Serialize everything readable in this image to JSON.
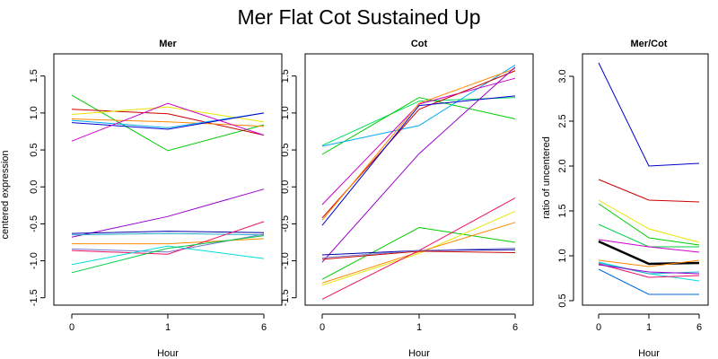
{
  "title": "Mer Flat Cot Sustained Up",
  "chart_data": [
    {
      "type": "line",
      "title": "Mer",
      "xlabel": "Hour",
      "ylabel": "centered expression",
      "categories": [
        "0",
        "1",
        "6"
      ],
      "yticks": [
        "-1.5",
        "-1.0",
        "-0.5",
        "0.0",
        "0.5",
        "1.0",
        "1.5"
      ],
      "ylim": [
        -1.6,
        1.8
      ],
      "series": [
        {
          "color": "#00cc00",
          "values": [
            1.24,
            0.49,
            0.84
          ]
        },
        {
          "color": "#cc0000",
          "values": [
            1.05,
            0.99,
            0.7
          ]
        },
        {
          "color": "#e6e600",
          "values": [
            0.98,
            1.08,
            0.88
          ]
        },
        {
          "color": "#ff8800",
          "values": [
            0.92,
            0.88,
            0.82
          ]
        },
        {
          "color": "#00aaee",
          "values": [
            0.9,
            0.8,
            1.0
          ]
        },
        {
          "color": "#0000cc",
          "values": [
            0.87,
            0.78,
            1.0
          ]
        },
        {
          "color": "#cc00cc",
          "values": [
            0.62,
            1.13,
            0.7
          ]
        },
        {
          "color": "#9900cc",
          "values": [
            -0.68,
            -0.4,
            -0.03
          ]
        },
        {
          "color": "#0000aa",
          "values": [
            -0.63,
            -0.6,
            -0.62
          ]
        },
        {
          "color": "#22aacc",
          "values": [
            -0.65,
            -0.63,
            -0.65
          ]
        },
        {
          "color": "#ff8800",
          "values": [
            -0.77,
            -0.77,
            -0.7
          ]
        },
        {
          "color": "#7777cc",
          "values": [
            -0.84,
            -0.88,
            -0.64
          ]
        },
        {
          "color": "#ee1166",
          "values": [
            -0.86,
            -0.91,
            -0.47
          ]
        },
        {
          "color": "#00dddd",
          "values": [
            -1.05,
            -0.8,
            -0.97
          ]
        },
        {
          "color": "#00cc44",
          "values": [
            -1.16,
            -0.83,
            -0.66
          ]
        }
      ]
    },
    {
      "type": "line",
      "title": "Cot",
      "xlabel": "Hour",
      "categories": [
        "0",
        "1",
        "6"
      ],
      "yticks": [
        "-1.5",
        "-1.0",
        "-0.5",
        "0.0",
        "0.5",
        "1.0",
        "1.5"
      ],
      "ylim": [
        -1.6,
        1.8
      ],
      "series": [
        {
          "color": "#00dd66",
          "values": [
            0.56,
            1.16,
            1.21
          ]
        },
        {
          "color": "#00cc00",
          "values": [
            0.44,
            1.21,
            0.92
          ]
        },
        {
          "color": "#00aaee",
          "values": [
            0.55,
            0.83,
            1.65
          ]
        },
        {
          "color": "#cc00cc",
          "values": [
            -0.24,
            1.12,
            1.47
          ]
        },
        {
          "color": "#cc0000",
          "values": [
            -0.42,
            1.05,
            1.57
          ]
        },
        {
          "color": "#ff8800",
          "values": [
            -0.45,
            1.13,
            1.6
          ]
        },
        {
          "color": "#0000cc",
          "values": [
            -0.52,
            1.1,
            1.23
          ]
        },
        {
          "color": "#9900cc",
          "values": [
            -1.02,
            0.45,
            1.62
          ]
        },
        {
          "color": "#00cc00",
          "values": [
            -1.25,
            -0.55,
            -0.75
          ]
        },
        {
          "color": "#e6e600",
          "values": [
            -1.33,
            -0.9,
            -0.33
          ]
        },
        {
          "color": "#ff8800",
          "values": [
            -1.3,
            -0.88,
            -0.48
          ]
        },
        {
          "color": "#ee1166",
          "values": [
            -1.52,
            -0.86,
            -0.15
          ]
        },
        {
          "color": "#0000aa",
          "values": [
            -0.92,
            -0.86,
            -0.85
          ]
        },
        {
          "color": "#cc0000",
          "values": [
            -0.98,
            -0.87,
            -0.89
          ]
        },
        {
          "color": "#7777cc",
          "values": [
            -0.96,
            -0.86,
            -0.83
          ]
        }
      ]
    },
    {
      "type": "line",
      "title": "Mer/Cot",
      "xlabel": "Hour",
      "ylabel": "ratio of uncentered",
      "categories": [
        "0",
        "1",
        "6"
      ],
      "yticks": [
        "0.5",
        "1.0",
        "1.5",
        "2.0",
        "2.5",
        "3.0"
      ],
      "ylim": [
        0.45,
        3.25
      ],
      "series": [
        {
          "color": "#0000cc",
          "values": [
            3.15,
            2.0,
            2.03
          ]
        },
        {
          "color": "#cc0000",
          "values": [
            1.85,
            1.62,
            1.6
          ]
        },
        {
          "color": "#e6e600",
          "values": [
            1.62,
            1.3,
            1.15
          ]
        },
        {
          "color": "#00cc00",
          "values": [
            1.58,
            1.2,
            1.12
          ]
        },
        {
          "color": "#00cc44",
          "values": [
            1.35,
            1.1,
            1.1
          ]
        },
        {
          "color": "#cc00cc",
          "values": [
            1.18,
            1.1,
            1.04
          ]
        },
        {
          "color": "#000000",
          "values": [
            1.16,
            0.91,
            0.92
          ],
          "bold": true
        },
        {
          "color": "#ff8800",
          "values": [
            0.95,
            0.88,
            0.95
          ]
        },
        {
          "color": "#00dddd",
          "values": [
            0.93,
            0.8,
            0.72
          ]
        },
        {
          "color": "#22aacc",
          "values": [
            0.92,
            0.8,
            0.82
          ]
        },
        {
          "color": "#ee1166",
          "values": [
            0.91,
            0.76,
            0.78
          ]
        },
        {
          "color": "#9900cc",
          "values": [
            0.9,
            0.82,
            0.8
          ]
        },
        {
          "color": "#0066dd",
          "values": [
            0.85,
            0.57,
            0.57
          ]
        }
      ]
    }
  ]
}
